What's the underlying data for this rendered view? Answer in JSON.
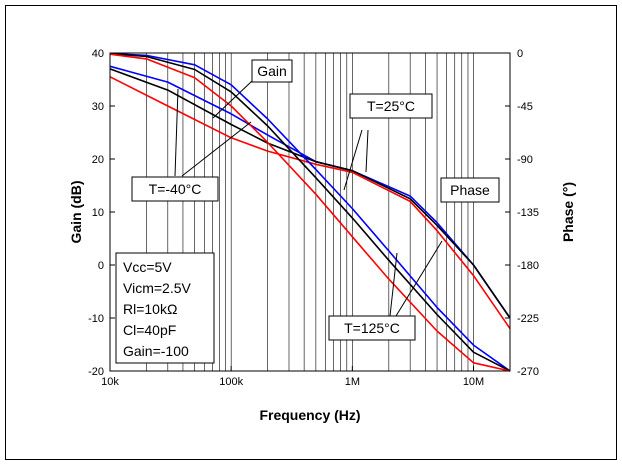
{
  "chart_data": {
    "type": "line",
    "title": "",
    "xlabel": "Frequency (Hz)",
    "ylabel": "Gain (dB)",
    "y2label": "Phase (°)",
    "xscale": "log",
    "xlim": [
      10000,
      20000000
    ],
    "ylim": [
      -20,
      40
    ],
    "y2lim": [
      -270,
      0
    ],
    "x_ticks": [
      {
        "value": 10000,
        "label": "10k"
      },
      {
        "value": 100000,
        "label": "100k"
      },
      {
        "value": 1000000,
        "label": "1M"
      },
      {
        "value": 10000000,
        "label": "10M"
      }
    ],
    "y_ticks": [
      {
        "value": 40,
        "label": "40"
      },
      {
        "value": 30,
        "label": "30"
      },
      {
        "value": 20,
        "label": "20"
      },
      {
        "value": 10,
        "label": "10"
      },
      {
        "value": 0,
        "label": "0"
      },
      {
        "value": -10,
        "label": "-10"
      },
      {
        "value": -20,
        "label": "-20"
      }
    ],
    "y2_ticks": [
      {
        "value": 0,
        "label": "0"
      },
      {
        "value": -45,
        "label": "-45"
      },
      {
        "value": -90,
        "label": "-90"
      },
      {
        "value": -135,
        "label": "-135"
      },
      {
        "value": -180,
        "label": "-180"
      },
      {
        "value": -225,
        "label": "-225"
      },
      {
        "value": -270,
        "label": "-270"
      }
    ],
    "grid": "vertical",
    "series": [
      {
        "color": "#0000ff",
        "axis": "left",
        "x": [
          10000,
          30000,
          100000,
          200000,
          500000,
          1000000,
          3000000,
          5000000,
          10000000,
          20000000
        ],
        "y": [
          37.5,
          34.5,
          28.5,
          24.5,
          19.5,
          17.8,
          13,
          8,
          0,
          -10
        ]
      },
      {
        "color": "#000000",
        "axis": "left",
        "x": [
          10000,
          30000,
          100000,
          200000,
          500000,
          1000000,
          3000000,
          5000000,
          10000000,
          20000000
        ],
        "y": [
          37,
          33,
          26.5,
          23,
          19.5,
          17.8,
          12.5,
          7.5,
          0,
          -10
        ]
      },
      {
        "color": "#ff0000",
        "axis": "left",
        "x": [
          10000,
          30000,
          100000,
          200000,
          500000,
          1000000,
          3000000,
          5000000,
          10000000,
          20000000
        ],
        "y": [
          35.5,
          30,
          24,
          21.5,
          19,
          17.5,
          12,
          6.5,
          -2,
          -12
        ]
      },
      {
        "color": "#0000ff",
        "axis": "right",
        "x": [
          10000,
          20000,
          50000,
          100000,
          200000,
          500000,
          1000000,
          2000000,
          5000000,
          10000000,
          20000000
        ],
        "y": [
          -0.5,
          -2,
          -10,
          -27,
          -56,
          -99,
          -132,
          -168,
          -216,
          -248,
          -270
        ]
      },
      {
        "color": "#000000",
        "axis": "right",
        "x": [
          10000,
          20000,
          50000,
          100000,
          200000,
          500000,
          1000000,
          2000000,
          5000000,
          10000000,
          20000000
        ],
        "y": [
          -0.5,
          -3,
          -14,
          -33,
          -62,
          -106,
          -140,
          -176,
          -222,
          -254,
          -270
        ]
      },
      {
        "color": "#ff0000",
        "axis": "right",
        "x": [
          10000,
          20000,
          50000,
          100000,
          200000,
          500000,
          1000000,
          2000000,
          5000000,
          10000000,
          20000000
        ],
        "y": [
          -1,
          -5,
          -21,
          -45,
          -76,
          -120,
          -156,
          -192,
          -236,
          -263,
          -270
        ]
      }
    ],
    "annotations": {
      "gain": "Gain",
      "phase": "Phase",
      "t25": "T=25°C",
      "tm40": "T=-40°C",
      "t125": "T=125°C"
    },
    "conditions": [
      "Vcc=5V",
      "Vicm=2.5V",
      "Rl=10kΩ",
      "Cl=40pF",
      "Gain=-100"
    ]
  }
}
